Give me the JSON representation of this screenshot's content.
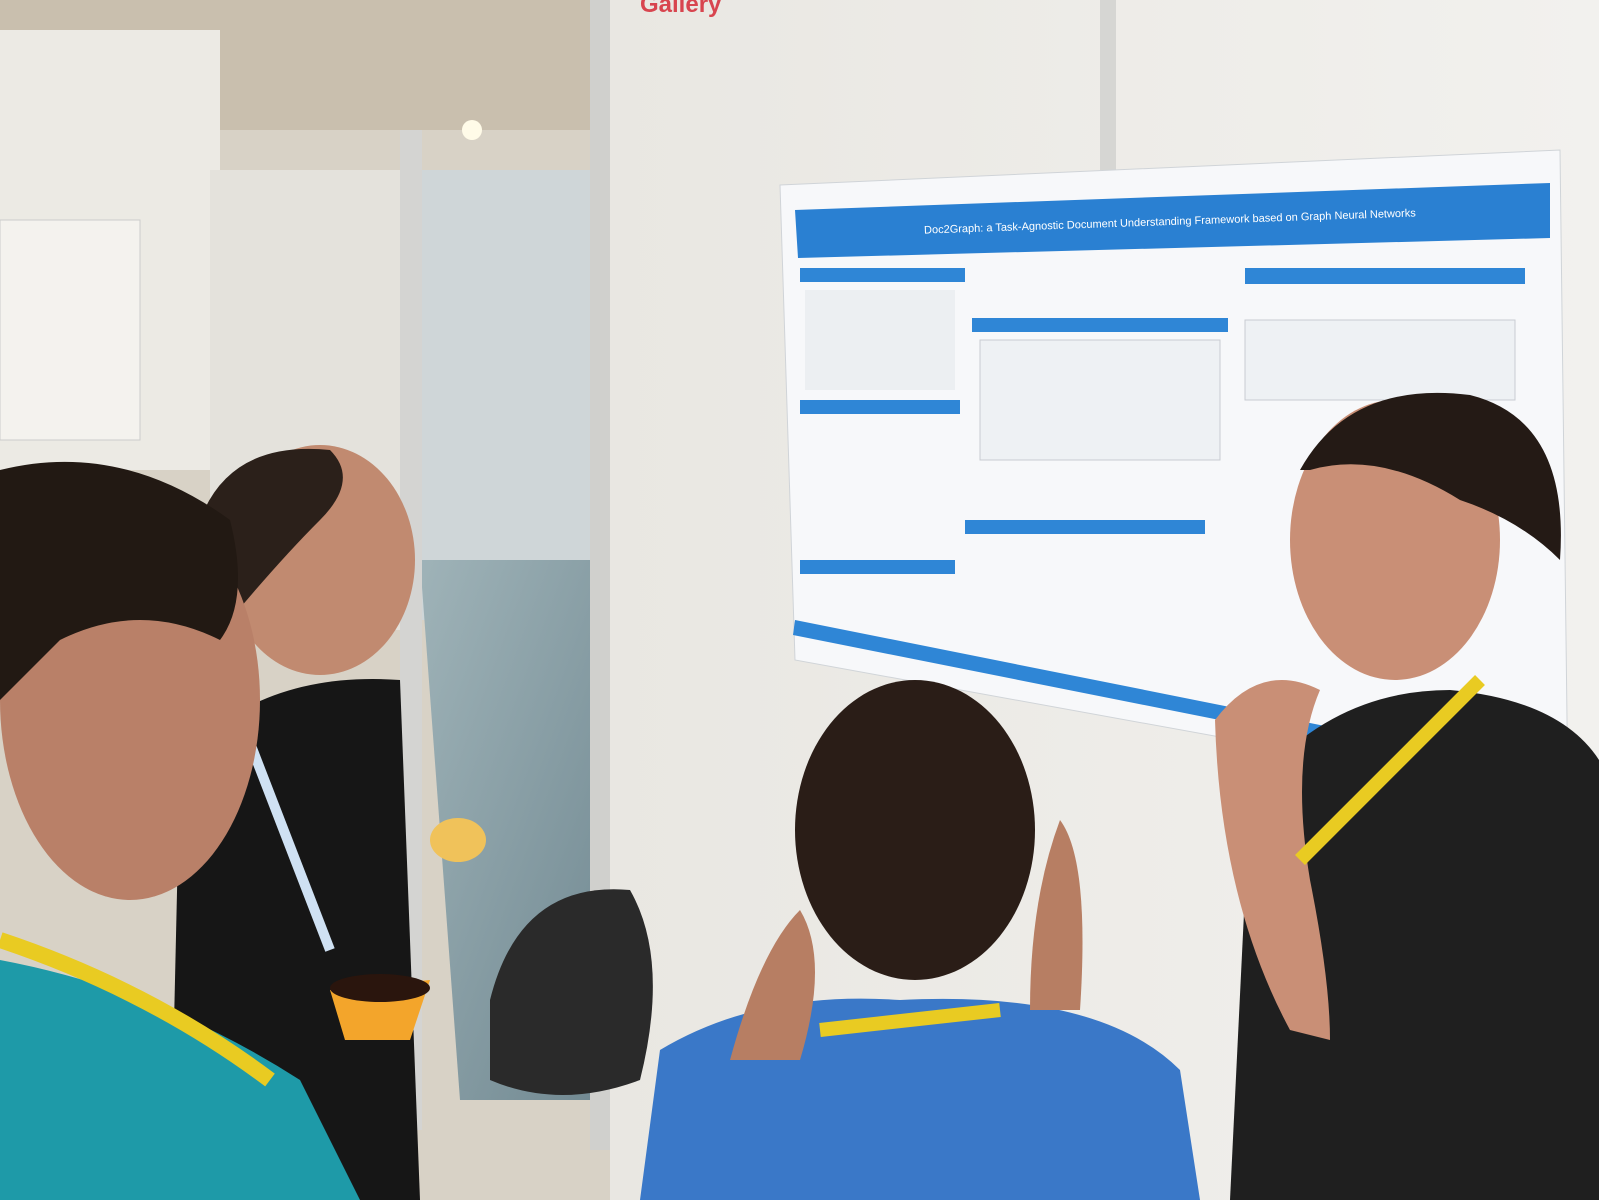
{
  "scene": {
    "sign": "Gallery",
    "poster": {
      "title": "Doc2Graph: a Task-Agnostic Document Understanding Framework based on Graph Neural Networks"
    }
  }
}
